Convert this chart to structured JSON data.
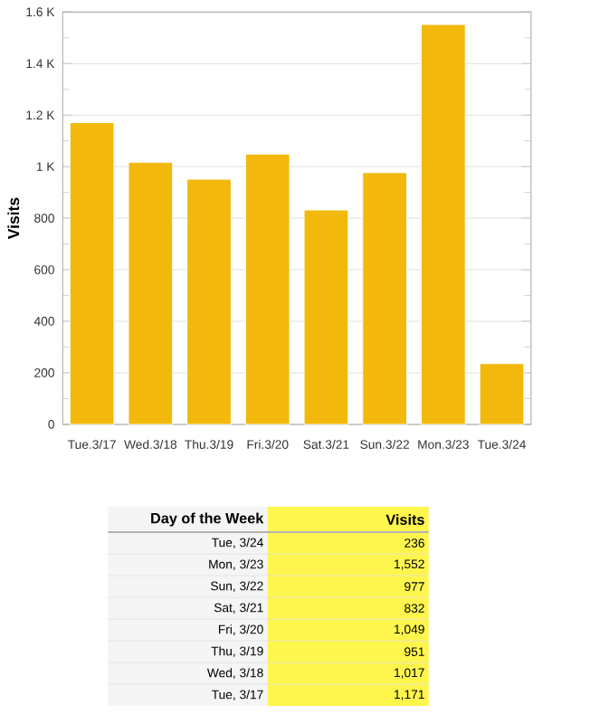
{
  "chart_data": {
    "type": "bar",
    "ylabel": "Visits",
    "categories": [
      "Tue.3/17",
      "Wed.3/18",
      "Thu.3/19",
      "Fri.3/20",
      "Sat.3/21",
      "Sun.3/22",
      "Mon.3/23",
      "Tue.3/24"
    ],
    "values": [
      1171,
      1017,
      951,
      1049,
      832,
      977,
      1552,
      236
    ],
    "color": "#f2b90c",
    "ylim": [
      0,
      1600
    ],
    "yticks": [
      0,
      200,
      400,
      600,
      800,
      {
        "value": 1000,
        "label": "1 K"
      },
      {
        "value": 1200,
        "label": "1.2 K"
      },
      {
        "value": 1400,
        "label": "1.4 K"
      },
      {
        "value": 1600,
        "label": "1.6 K"
      }
    ],
    "grid": "y",
    "annotations": [
      "Day of the Week",
      "Visits",
      "Tue, 3/24",
      "236",
      "Mon, 3/23",
      "1,552",
      "Sun, 3/22",
      "977",
      "Sat, 3/21",
      "832",
      "Fri, 3/20",
      "1,049",
      "Thu, 3/19",
      "951",
      "Wed, 3/18",
      "1,017",
      "Tue, 3/17",
      "1,171"
    ]
  }
}
